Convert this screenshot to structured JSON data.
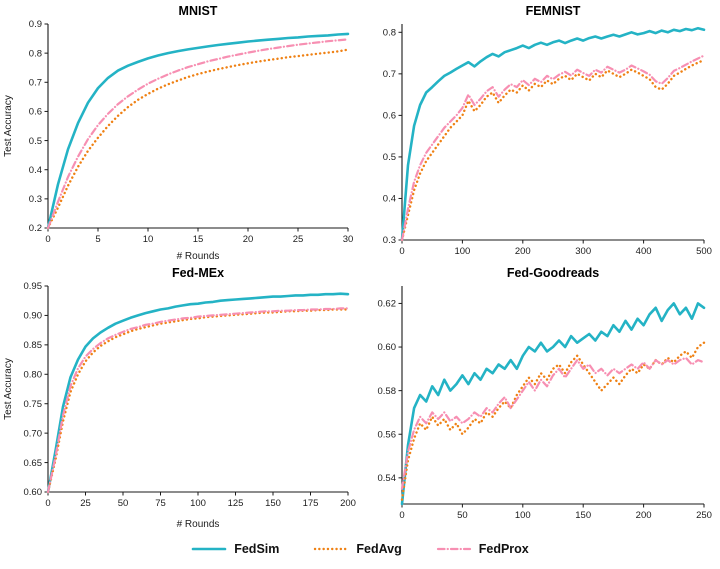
{
  "figure": {
    "legend": {
      "items": [
        {
          "label": "FedSim",
          "color": "#24b3c5",
          "dash": "solid"
        },
        {
          "label": "FedAvg",
          "color": "#ef8114",
          "dash": "dotted"
        },
        {
          "label": "FedProx",
          "color": "#f78fb2",
          "dash": "dashdot"
        }
      ]
    }
  },
  "chart_data": [
    {
      "type": "line",
      "title": "MNIST",
      "xlabel": "# Rounds",
      "ylabel": "Test Accuracy",
      "xlim": [
        0,
        30
      ],
      "ylim": [
        0.2,
        0.9
      ],
      "xticks": [
        0,
        5,
        10,
        15,
        20,
        25,
        30
      ],
      "yticks": [
        0.2,
        0.3,
        0.4,
        0.5,
        0.6,
        0.7,
        0.8,
        0.9
      ],
      "ytick_decimals": 1,
      "grid": false,
      "x": [
        0,
        1,
        2,
        3,
        4,
        5,
        6,
        7,
        8,
        9,
        10,
        11,
        12,
        13,
        14,
        15,
        16,
        17,
        18,
        19,
        20,
        21,
        22,
        23,
        24,
        25,
        26,
        27,
        28,
        29,
        30
      ],
      "series": [
        {
          "name": "FedSim",
          "color": "#24b3c5",
          "dash": "solid",
          "y": [
            0.2,
            0.35,
            0.47,
            0.56,
            0.63,
            0.68,
            0.715,
            0.74,
            0.757,
            0.77,
            0.782,
            0.792,
            0.8,
            0.807,
            0.813,
            0.818,
            0.823,
            0.828,
            0.832,
            0.836,
            0.84,
            0.843,
            0.846,
            0.849,
            0.852,
            0.854,
            0.857,
            0.859,
            0.861,
            0.864,
            0.866
          ]
        },
        {
          "name": "FedAvg",
          "color": "#ef8114",
          "dash": "dotted",
          "y": [
            0.195,
            0.27,
            0.345,
            0.41,
            0.465,
            0.51,
            0.55,
            0.585,
            0.615,
            0.64,
            0.66,
            0.678,
            0.693,
            0.706,
            0.718,
            0.728,
            0.737,
            0.745,
            0.752,
            0.759,
            0.765,
            0.771,
            0.776,
            0.781,
            0.786,
            0.79,
            0.794,
            0.798,
            0.802,
            0.806,
            0.812
          ]
        },
        {
          "name": "FedProx",
          "color": "#f78fb2",
          "dash": "dashdot",
          "y": [
            0.195,
            0.29,
            0.375,
            0.445,
            0.505,
            0.553,
            0.592,
            0.625,
            0.652,
            0.675,
            0.695,
            0.712,
            0.727,
            0.74,
            0.752,
            0.762,
            0.772,
            0.78,
            0.788,
            0.795,
            0.802,
            0.808,
            0.814,
            0.819,
            0.824,
            0.829,
            0.833,
            0.837,
            0.841,
            0.844,
            0.847
          ]
        }
      ]
    },
    {
      "type": "line",
      "title": "FEMNIST",
      "xlabel": "",
      "ylabel": "",
      "xlim": [
        0,
        500
      ],
      "ylim": [
        0.3,
        0.82
      ],
      "xticks": [
        0,
        100,
        200,
        300,
        400,
        500
      ],
      "yticks": [
        0.3,
        0.4,
        0.5,
        0.6,
        0.7,
        0.8
      ],
      "ytick_decimals": 1,
      "grid": false,
      "x": [
        0,
        10,
        20,
        30,
        40,
        50,
        60,
        70,
        80,
        90,
        100,
        110,
        120,
        130,
        140,
        150,
        160,
        170,
        180,
        190,
        200,
        210,
        220,
        230,
        240,
        250,
        260,
        270,
        280,
        290,
        300,
        310,
        320,
        330,
        340,
        350,
        360,
        370,
        380,
        390,
        400,
        410,
        420,
        430,
        440,
        450,
        460,
        470,
        480,
        490,
        500
      ],
      "series": [
        {
          "name": "FedSim",
          "color": "#24b3c5",
          "dash": "solid",
          "y": [
            0.3,
            0.48,
            0.575,
            0.625,
            0.655,
            0.668,
            0.682,
            0.695,
            0.703,
            0.712,
            0.72,
            0.728,
            0.718,
            0.73,
            0.74,
            0.748,
            0.742,
            0.752,
            0.757,
            0.762,
            0.768,
            0.762,
            0.77,
            0.775,
            0.77,
            0.776,
            0.78,
            0.774,
            0.78,
            0.785,
            0.78,
            0.786,
            0.79,
            0.785,
            0.79,
            0.794,
            0.79,
            0.795,
            0.8,
            0.795,
            0.798,
            0.803,
            0.798,
            0.804,
            0.8,
            0.806,
            0.803,
            0.808,
            0.805,
            0.81,
            0.806
          ]
        },
        {
          "name": "FedAvg",
          "color": "#ef8114",
          "dash": "dotted",
          "y": [
            0.3,
            0.36,
            0.42,
            0.46,
            0.49,
            0.51,
            0.53,
            0.55,
            0.57,
            0.585,
            0.6,
            0.635,
            0.61,
            0.625,
            0.645,
            0.655,
            0.63,
            0.648,
            0.662,
            0.655,
            0.672,
            0.66,
            0.676,
            0.668,
            0.684,
            0.675,
            0.688,
            0.695,
            0.685,
            0.7,
            0.692,
            0.684,
            0.7,
            0.692,
            0.708,
            0.7,
            0.692,
            0.7,
            0.71,
            0.703,
            0.695,
            0.687,
            0.668,
            0.662,
            0.676,
            0.695,
            0.703,
            0.712,
            0.72,
            0.727,
            0.733
          ]
        },
        {
          "name": "FedProx",
          "color": "#f78fb2",
          "dash": "dashdot",
          "y": [
            0.3,
            0.375,
            0.44,
            0.48,
            0.51,
            0.53,
            0.55,
            0.57,
            0.585,
            0.6,
            0.618,
            0.65,
            0.625,
            0.64,
            0.658,
            0.668,
            0.645,
            0.662,
            0.675,
            0.668,
            0.685,
            0.673,
            0.688,
            0.68,
            0.695,
            0.687,
            0.698,
            0.705,
            0.696,
            0.71,
            0.702,
            0.695,
            0.71,
            0.703,
            0.717,
            0.71,
            0.703,
            0.71,
            0.72,
            0.713,
            0.706,
            0.698,
            0.682,
            0.676,
            0.69,
            0.707,
            0.714,
            0.722,
            0.73,
            0.737,
            0.744
          ]
        }
      ]
    },
    {
      "type": "line",
      "title": "Fed-MEx",
      "xlabel": "# Rounds",
      "ylabel": "Test Accuracy",
      "xlim": [
        0,
        200
      ],
      "ylim": [
        0.6,
        0.95
      ],
      "xticks": [
        0,
        25,
        50,
        75,
        100,
        125,
        150,
        175,
        200
      ],
      "yticks": [
        0.6,
        0.65,
        0.7,
        0.75,
        0.8,
        0.85,
        0.9,
        0.95
      ],
      "ytick_decimals": 2,
      "grid": false,
      "x": [
        0,
        5,
        10,
        15,
        20,
        25,
        30,
        35,
        40,
        45,
        50,
        55,
        60,
        65,
        70,
        75,
        80,
        85,
        90,
        95,
        100,
        105,
        110,
        115,
        120,
        125,
        130,
        135,
        140,
        145,
        150,
        155,
        160,
        165,
        170,
        175,
        180,
        185,
        190,
        195,
        200
      ],
      "series": [
        {
          "name": "FedSim",
          "color": "#24b3c5",
          "dash": "solid",
          "y": [
            0.6,
            0.67,
            0.745,
            0.795,
            0.825,
            0.847,
            0.861,
            0.871,
            0.879,
            0.886,
            0.891,
            0.896,
            0.9,
            0.904,
            0.907,
            0.91,
            0.912,
            0.915,
            0.917,
            0.919,
            0.92,
            0.922,
            0.923,
            0.925,
            0.926,
            0.927,
            0.928,
            0.929,
            0.93,
            0.931,
            0.932,
            0.932,
            0.933,
            0.934,
            0.934,
            0.935,
            0.935,
            0.936,
            0.936,
            0.937,
            0.936
          ]
        },
        {
          "name": "FedAvg",
          "color": "#ef8114",
          "dash": "dotted",
          "y": [
            0.6,
            0.655,
            0.72,
            0.77,
            0.8,
            0.822,
            0.837,
            0.848,
            0.856,
            0.863,
            0.868,
            0.873,
            0.877,
            0.88,
            0.883,
            0.886,
            0.888,
            0.89,
            0.892,
            0.894,
            0.895,
            0.897,
            0.898,
            0.899,
            0.9,
            0.901,
            0.902,
            0.903,
            0.904,
            0.905,
            0.905,
            0.906,
            0.907,
            0.907,
            0.908,
            0.908,
            0.909,
            0.909,
            0.91,
            0.91,
            0.91
          ]
        },
        {
          "name": "FedProx",
          "color": "#f78fb2",
          "dash": "dashdot",
          "y": [
            0.6,
            0.66,
            0.73,
            0.78,
            0.81,
            0.83,
            0.843,
            0.853,
            0.861,
            0.867,
            0.872,
            0.877,
            0.88,
            0.884,
            0.886,
            0.889,
            0.891,
            0.893,
            0.895,
            0.896,
            0.898,
            0.899,
            0.9,
            0.901,
            0.902,
            0.903,
            0.904,
            0.905,
            0.906,
            0.907,
            0.907,
            0.908,
            0.908,
            0.909,
            0.909,
            0.91,
            0.91,
            0.911,
            0.911,
            0.912,
            0.912
          ]
        }
      ]
    },
    {
      "type": "line",
      "title": "Fed-Goodreads",
      "xlabel": "",
      "ylabel": "",
      "xlim": [
        0,
        250
      ],
      "ylim": [
        0.528,
        0.628
      ],
      "xticks": [
        0,
        50,
        100,
        150,
        200,
        250
      ],
      "yticks": [
        0.54,
        0.56,
        0.58,
        0.6,
        0.62
      ],
      "ytick_decimals": 2,
      "grid": false,
      "x": [
        0,
        5,
        10,
        15,
        20,
        25,
        30,
        35,
        40,
        45,
        50,
        55,
        60,
        65,
        70,
        75,
        80,
        85,
        90,
        95,
        100,
        105,
        110,
        115,
        120,
        125,
        130,
        135,
        140,
        145,
        150,
        155,
        160,
        165,
        170,
        175,
        180,
        185,
        190,
        195,
        200,
        205,
        210,
        215,
        220,
        225,
        230,
        235,
        240,
        245,
        250
      ],
      "series": [
        {
          "name": "FedSim",
          "color": "#24b3c5",
          "dash": "solid",
          "y": [
            0.528,
            0.555,
            0.572,
            0.578,
            0.575,
            0.582,
            0.578,
            0.585,
            0.58,
            0.583,
            0.587,
            0.583,
            0.588,
            0.585,
            0.59,
            0.588,
            0.592,
            0.59,
            0.594,
            0.59,
            0.596,
            0.6,
            0.598,
            0.602,
            0.598,
            0.6,
            0.603,
            0.6,
            0.605,
            0.602,
            0.604,
            0.606,
            0.603,
            0.607,
            0.605,
            0.61,
            0.607,
            0.612,
            0.608,
            0.613,
            0.61,
            0.615,
            0.618,
            0.612,
            0.617,
            0.62,
            0.615,
            0.618,
            0.613,
            0.62,
            0.618
          ]
        },
        {
          "name": "FedAvg",
          "color": "#ef8114",
          "dash": "dotted",
          "y": [
            0.53,
            0.548,
            0.558,
            0.565,
            0.562,
            0.568,
            0.564,
            0.567,
            0.562,
            0.565,
            0.56,
            0.563,
            0.567,
            0.565,
            0.57,
            0.568,
            0.572,
            0.575,
            0.572,
            0.578,
            0.582,
            0.586,
            0.583,
            0.588,
            0.585,
            0.59,
            0.592,
            0.588,
            0.593,
            0.596,
            0.592,
            0.588,
            0.584,
            0.58,
            0.583,
            0.586,
            0.583,
            0.587,
            0.59,
            0.588,
            0.592,
            0.59,
            0.594,
            0.592,
            0.595,
            0.593,
            0.596,
            0.598,
            0.595,
            0.6,
            0.602
          ]
        },
        {
          "name": "FedProx",
          "color": "#f78fb2",
          "dash": "dashdot",
          "y": [
            0.535,
            0.552,
            0.562,
            0.568,
            0.565,
            0.57,
            0.567,
            0.57,
            0.566,
            0.568,
            0.565,
            0.567,
            0.57,
            0.568,
            0.572,
            0.57,
            0.574,
            0.577,
            0.572,
            0.576,
            0.58,
            0.584,
            0.58,
            0.585,
            0.582,
            0.587,
            0.59,
            0.586,
            0.59,
            0.594,
            0.59,
            0.592,
            0.588,
            0.59,
            0.587,
            0.59,
            0.588,
            0.59,
            0.592,
            0.59,
            0.593,
            0.59,
            0.594,
            0.592,
            0.594,
            0.592,
            0.594,
            0.595,
            0.592,
            0.594,
            0.593
          ]
        }
      ]
    }
  ]
}
